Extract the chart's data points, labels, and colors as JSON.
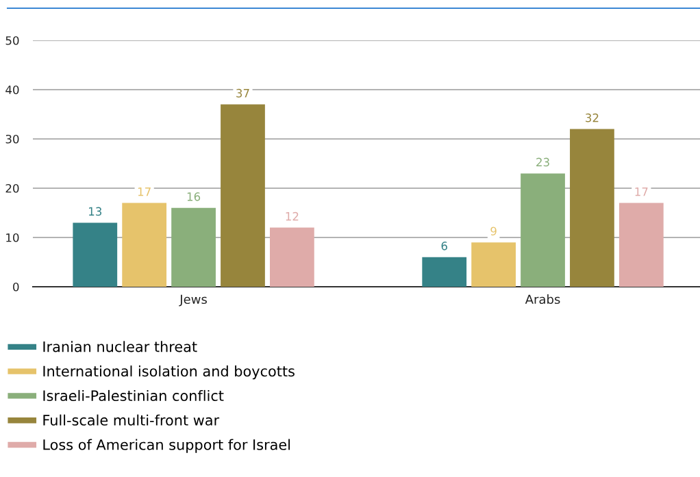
{
  "chart_data": {
    "type": "bar",
    "categories": [
      "Jews",
      "Arabs"
    ],
    "series": [
      {
        "name": "Iranian nuclear threat",
        "color": "#358287",
        "values": [
          13,
          6
        ]
      },
      {
        "name": "International isolation and boycotts",
        "color": "#e6c36b",
        "values": [
          17,
          9
        ]
      },
      {
        "name": "Israeli-Palestinian conflict",
        "color": "#8aaf7b",
        "values": [
          16,
          23
        ]
      },
      {
        "name": "Full-scale multi-front war",
        "color": "#97853c",
        "values": [
          37,
          32
        ]
      },
      {
        "name": "Loss of American support for Israel",
        "color": "#dfaba9",
        "values": [
          12,
          17
        ]
      }
    ],
    "ylim": [
      0,
      50
    ],
    "yticks": [
      0,
      10,
      20,
      30,
      40,
      50
    ],
    "grid": "y",
    "legend": "bottom",
    "data_labels": true
  }
}
